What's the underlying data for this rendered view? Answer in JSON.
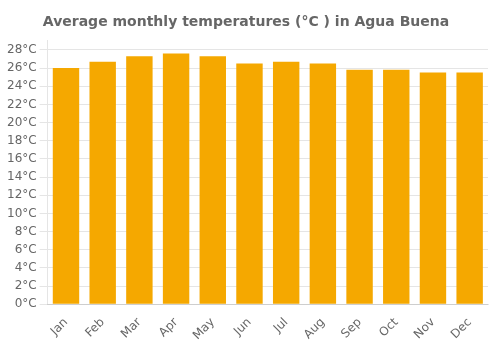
{
  "chart_data": {
    "type": "bar",
    "title": "Average monthly temperatures (°C ) in Agua Buena",
    "categories": [
      "Jan",
      "Feb",
      "Mar",
      "Apr",
      "May",
      "Jun",
      "Jul",
      "Aug",
      "Sep",
      "Oct",
      "Nov",
      "Dec"
    ],
    "values": [
      26.0,
      26.7,
      27.3,
      27.6,
      27.3,
      26.5,
      26.7,
      26.5,
      25.8,
      25.8,
      25.5,
      25.5
    ],
    "color": "#F5A800",
    "ylim": [
      0,
      29
    ],
    "yticks": [
      {
        "value": 0,
        "label": "0°C"
      },
      {
        "value": 2,
        "label": "2°C"
      },
      {
        "value": 4,
        "label": "4°C"
      },
      {
        "value": 6,
        "label": "6°C"
      },
      {
        "value": 8,
        "label": "8°C"
      },
      {
        "value": 10,
        "label": "10°C"
      },
      {
        "value": 12,
        "label": "12°C"
      },
      {
        "value": 14,
        "label": "14°C"
      },
      {
        "value": 16,
        "label": "16°C"
      },
      {
        "value": 18,
        "label": "18°C"
      },
      {
        "value": 20,
        "label": "20°C"
      },
      {
        "value": 22,
        "label": "22°C"
      },
      {
        "value": 24,
        "label": "24°C"
      },
      {
        "value": 26,
        "label": "26°C"
      },
      {
        "value": 28,
        "label": "28°C"
      }
    ],
    "grid": true
  }
}
